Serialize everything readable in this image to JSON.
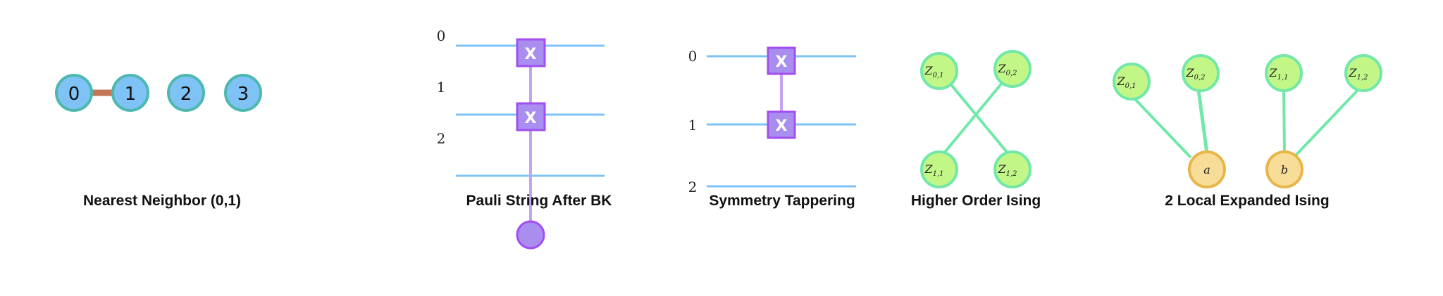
{
  "colors": {
    "qubit_fill": "#7fc3f6",
    "qubit_stroke": "#4db8ae",
    "coupling_edge": "#c47556",
    "wire": "#7cc4f8",
    "gate_fill": "#a98ef0",
    "gate_stroke": "#a24ef0",
    "ising_fill": "#c2f788",
    "ising_stroke": "#72e8a8",
    "ancilla_fill": "#f8dd98",
    "ancilla_stroke": "#e8b64a"
  },
  "panels": [
    {
      "title": "Nearest Neighbor (0,1)",
      "nodes": [
        "0",
        "1",
        "2",
        "3"
      ],
      "edges": [
        [
          "0",
          "1"
        ]
      ]
    },
    {
      "title": "Pauli String After BK",
      "wires": [
        "0",
        "1",
        "2"
      ],
      "gate_symbol": "X",
      "gates_on": [
        "0",
        "1"
      ]
    },
    {
      "title": "Symmetry Tappering",
      "wires": [
        "0",
        "1",
        "2"
      ],
      "gate_symbol": "X",
      "gates_on": [
        "0",
        "1"
      ]
    },
    {
      "title": "Higher Order Ising",
      "nodes": [
        {
          "base": "Z",
          "sub": "0,1"
        },
        {
          "base": "Z",
          "sub": "0,2"
        },
        {
          "base": "Z",
          "sub": "1,1"
        },
        {
          "base": "Z",
          "sub": "1,2"
        }
      ],
      "edges": [
        [
          "Z0,1",
          "Z1,2"
        ],
        [
          "Z0,2",
          "Z1,1"
        ]
      ]
    },
    {
      "title": "2 Local Expanded Ising",
      "nodes": [
        {
          "base": "Z",
          "sub": "0,1"
        },
        {
          "base": "Z",
          "sub": "0,2"
        },
        {
          "base": "a",
          "sub": ""
        },
        {
          "base": "Z",
          "sub": "1,1"
        },
        {
          "base": "Z",
          "sub": "1,2"
        },
        {
          "base": "b",
          "sub": ""
        }
      ],
      "edges": [
        [
          "Z0,1",
          "a"
        ],
        [
          "Z0,2",
          "a"
        ],
        [
          "Z1,1",
          "b"
        ],
        [
          "Z1,2",
          "b"
        ]
      ]
    }
  ]
}
